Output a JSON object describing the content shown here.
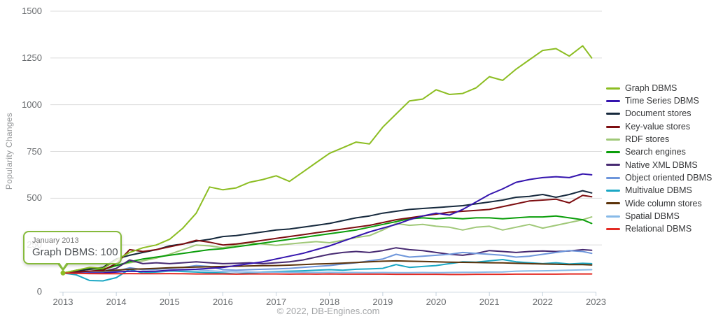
{
  "tooltip": {
    "date": "January 2013",
    "value_text": "Graph DBMS: 100"
  },
  "axes": {
    "y_title": "Popularity Changes",
    "y_ticks": [
      0,
      250,
      500,
      750,
      1000,
      1250,
      1500
    ],
    "x_ticks": [
      2013,
      2014,
      2015,
      2016,
      2017,
      2018,
      2019,
      2020,
      2021,
      2022,
      2023
    ]
  },
  "colors": {
    "gridline": "#dddddd",
    "axis_line": "#c6d3de",
    "tooltip_border": "#86ba3b"
  },
  "chart_data": {
    "type": "line",
    "title": "",
    "ylabel": "Popularity Changes",
    "xlabel": "",
    "ylim": [
      0,
      1500
    ],
    "xlim": [
      2013,
      2023
    ],
    "grid": true,
    "legend_position": "right",
    "footer": "© 2022, DB-Engines.com",
    "annotation": {
      "x": 2013.0,
      "label": "January 2013",
      "text": "Graph DBMS: 100",
      "value": 100
    },
    "x": [
      2013.0,
      2013.25,
      2013.5,
      2013.75,
      2014.0,
      2014.25,
      2014.5,
      2014.75,
      2015.0,
      2015.25,
      2015.5,
      2015.75,
      2016.0,
      2016.25,
      2016.5,
      2016.75,
      2017.0,
      2017.25,
      2017.5,
      2017.75,
      2018.0,
      2018.25,
      2018.5,
      2018.75,
      2019.0,
      2019.25,
      2019.5,
      2019.75,
      2020.0,
      2020.25,
      2020.5,
      2020.75,
      2021.0,
      2021.25,
      2021.5,
      2021.75,
      2022.0,
      2022.25,
      2022.5,
      2022.75,
      2022.92
    ],
    "series": [
      {
        "name": "Graph DBMS",
        "color": "#8cbd22",
        "values": [
          100,
          115,
          130,
          125,
          170,
          210,
          235,
          250,
          280,
          340,
          420,
          560,
          545,
          555,
          585,
          600,
          620,
          590,
          640,
          690,
          740,
          770,
          800,
          790,
          880,
          950,
          1020,
          1030,
          1080,
          1055,
          1060,
          1090,
          1150,
          1130,
          1190,
          1240,
          1290,
          1300,
          1260,
          1315,
          1250
        ]
      },
      {
        "name": "Time Series DBMS",
        "color": "#3515ae",
        "values": [
          100,
          98,
          100,
          100,
          105,
          110,
          108,
          110,
          115,
          118,
          120,
          125,
          130,
          140,
          150,
          160,
          175,
          190,
          205,
          225,
          245,
          270,
          295,
          320,
          340,
          360,
          385,
          405,
          420,
          410,
          440,
          480,
          520,
          550,
          585,
          600,
          610,
          615,
          610,
          630,
          625
        ]
      },
      {
        "name": "Document stores",
        "color": "#16293d",
        "values": [
          100,
          110,
          120,
          130,
          175,
          195,
          210,
          225,
          245,
          255,
          270,
          280,
          295,
          300,
          310,
          320,
          330,
          335,
          345,
          355,
          365,
          380,
          395,
          405,
          420,
          430,
          440,
          445,
          450,
          455,
          460,
          470,
          480,
          490,
          505,
          510,
          520,
          505,
          520,
          540,
          528
        ]
      },
      {
        "name": "Key-value stores",
        "color": "#7d0e11",
        "values": [
          100,
          105,
          110,
          115,
          150,
          225,
          215,
          225,
          240,
          255,
          275,
          265,
          250,
          255,
          265,
          275,
          285,
          295,
          305,
          315,
          325,
          335,
          345,
          355,
          370,
          385,
          395,
          405,
          415,
          425,
          430,
          435,
          440,
          455,
          470,
          485,
          490,
          495,
          475,
          515,
          508
        ]
      },
      {
        "name": "RDF stores",
        "color": "#a0c878",
        "values": [
          100,
          110,
          120,
          115,
          140,
          155,
          165,
          180,
          200,
          225,
          250,
          245,
          235,
          250,
          262,
          255,
          248,
          255,
          262,
          268,
          262,
          275,
          290,
          300,
          330,
          365,
          355,
          360,
          350,
          345,
          330,
          345,
          350,
          330,
          345,
          360,
          340,
          355,
          370,
          385,
          400
        ]
      },
      {
        "name": "Search engines",
        "color": "#0b9e0b",
        "values": [
          100,
          115,
          125,
          120,
          140,
          160,
          175,
          185,
          195,
          205,
          215,
          225,
          230,
          240,
          250,
          260,
          270,
          280,
          290,
          300,
          310,
          320,
          330,
          345,
          360,
          375,
          390,
          395,
          390,
          395,
          390,
          395,
          395,
          390,
          395,
          400,
          400,
          405,
          395,
          385,
          365
        ]
      },
      {
        "name": "Native XML DBMS",
        "color": "#472a72",
        "values": [
          100,
          105,
          110,
          108,
          125,
          170,
          150,
          155,
          150,
          155,
          160,
          155,
          150,
          152,
          155,
          150,
          155,
          160,
          170,
          185,
          200,
          210,
          215,
          210,
          220,
          235,
          225,
          220,
          210,
          200,
          195,
          205,
          220,
          215,
          210,
          215,
          218,
          215,
          218,
          225,
          222
        ]
      },
      {
        "name": "Object oriented DBMS",
        "color": "#6e96db",
        "values": [
          100,
          102,
          105,
          103,
          110,
          128,
          118,
          120,
          125,
          130,
          140,
          135,
          118,
          115,
          118,
          120,
          122,
          125,
          130,
          135,
          140,
          148,
          155,
          165,
          175,
          200,
          185,
          190,
          195,
          200,
          210,
          205,
          200,
          195,
          185,
          190,
          200,
          210,
          220,
          215,
          205
        ]
      },
      {
        "name": "Multivalue DBMS",
        "color": "#1ba7c4",
        "values": [
          100,
          90,
          60,
          58,
          75,
          120,
          100,
          105,
          110,
          108,
          105,
          102,
          100,
          95,
          100,
          105,
          108,
          110,
          112,
          115,
          118,
          115,
          120,
          122,
          125,
          145,
          130,
          135,
          140,
          150,
          160,
          158,
          165,
          172,
          160,
          155,
          150,
          155,
          148,
          152,
          150
        ]
      },
      {
        "name": "Wide column stores",
        "color": "#5c330a",
        "values": [
          100,
          105,
          108,
          110,
          115,
          120,
          122,
          125,
          128,
          130,
          132,
          133,
          135,
          136,
          138,
          139,
          140,
          142,
          145,
          148,
          150,
          153,
          156,
          160,
          163,
          165,
          163,
          162,
          160,
          158,
          157,
          156,
          155,
          154,
          152,
          150,
          148,
          147,
          145,
          145,
          143
        ]
      },
      {
        "name": "Spatial DBMS",
        "color": "#88bae8",
        "values": [
          100,
          102,
          104,
          103,
          106,
          110,
          108,
          110,
          112,
          115,
          118,
          112,
          108,
          106,
          105,
          104,
          105,
          104,
          104,
          103,
          104,
          103,
          103,
          102,
          103,
          102,
          102,
          103,
          102,
          103,
          104,
          104,
          105,
          106,
          110,
          111,
          112,
          113,
          115,
          117,
          118
        ]
      },
      {
        "name": "Relational DBMS",
        "color": "#e32b24",
        "values": [
          100,
          98,
          97,
          96,
          96,
          97,
          96,
          96,
          97,
          96,
          95,
          95,
          95,
          94,
          95,
          95,
          95,
          94,
          95,
          94,
          95,
          94,
          94,
          94,
          94,
          93,
          93,
          93,
          93,
          92,
          92,
          93,
          93,
          93,
          94,
          94,
          94,
          94,
          95,
          95,
          95
        ]
      }
    ]
  }
}
